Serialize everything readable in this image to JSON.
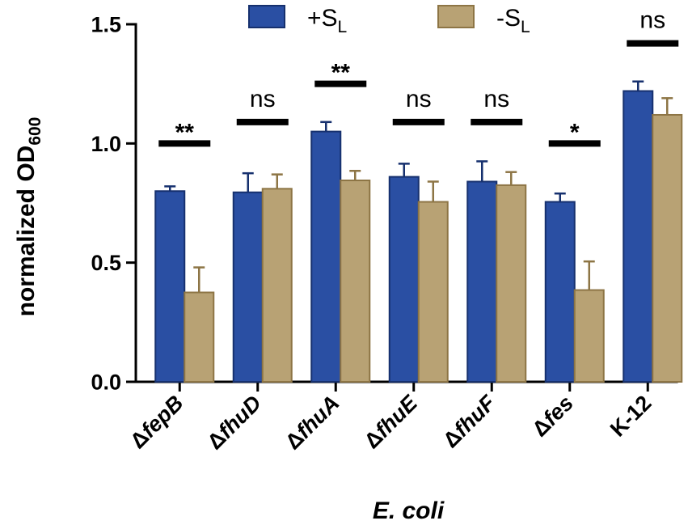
{
  "chart_data": {
    "type": "bar",
    "title": "",
    "xlabel": "E. coli",
    "ylabel": {
      "main": "normalized OD",
      "sub": "600"
    },
    "ylim": [
      0,
      1.5
    ],
    "yticks": [
      {
        "value": 0.0,
        "label": "0.0"
      },
      {
        "value": 0.5,
        "label": "0.5"
      },
      {
        "value": 1.0,
        "label": "1.0"
      },
      {
        "value": 1.5,
        "label": "1.5"
      }
    ],
    "grid": false,
    "legend_position": "top",
    "categories": [
      {
        "prefix": "Δ",
        "name": "fepB",
        "italic": true
      },
      {
        "prefix": "Δ",
        "name": "fhuD",
        "italic": true
      },
      {
        "prefix": "Δ",
        "name": "fhuA",
        "italic": true
      },
      {
        "prefix": "Δ",
        "name": "fhuE",
        "italic": true
      },
      {
        "prefix": "Δ",
        "name": "fhuF",
        "italic": true
      },
      {
        "prefix": "Δ",
        "name": "fes",
        "italic": true
      },
      {
        "prefix": "",
        "name": "K-12",
        "italic": false
      }
    ],
    "series": [
      {
        "name": "+S",
        "subscript": "L",
        "color": "#2a4fa3",
        "edge": "#16306e",
        "values": [
          0.8,
          0.795,
          1.05,
          0.86,
          0.84,
          0.755,
          1.22
        ],
        "errors": [
          0.02,
          0.08,
          0.04,
          0.055,
          0.085,
          0.035,
          0.04
        ]
      },
      {
        "name": "-S",
        "subscript": "L",
        "color": "#b8a274",
        "edge": "#8d7545",
        "values": [
          0.375,
          0.81,
          0.845,
          0.755,
          0.825,
          0.385,
          1.12
        ],
        "errors": [
          0.105,
          0.06,
          0.04,
          0.085,
          0.055,
          0.12,
          0.07
        ]
      }
    ],
    "significance": [
      {
        "label": "**",
        "bar_y": 1.0
      },
      {
        "label": "ns",
        "bar_y": 1.09
      },
      {
        "label": "**",
        "bar_y": 1.25
      },
      {
        "label": "ns",
        "bar_y": 1.09
      },
      {
        "label": "ns",
        "bar_y": 1.09
      },
      {
        "label": "*",
        "bar_y": 1.0
      },
      {
        "label": "ns",
        "bar_y": 1.42
      }
    ]
  }
}
